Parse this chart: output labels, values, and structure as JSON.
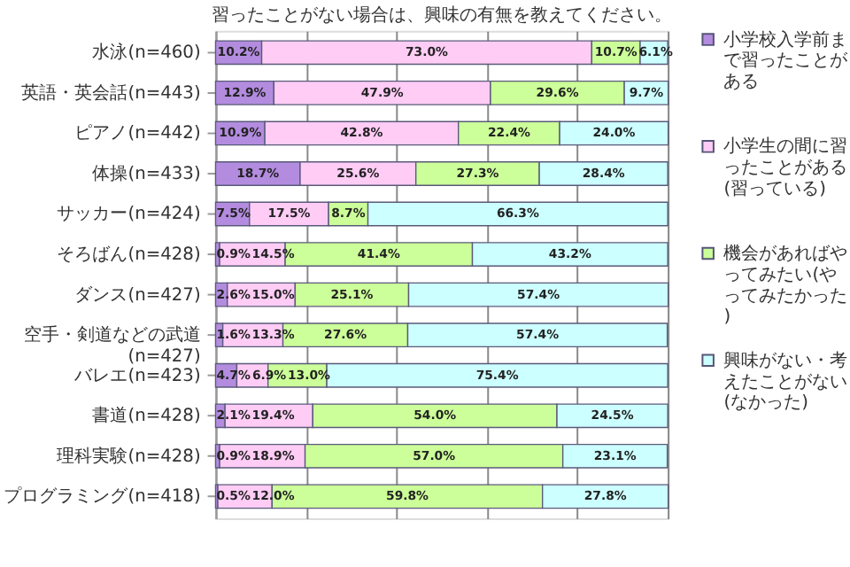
{
  "chart_data": {
    "type": "bar",
    "orientation": "horizontal",
    "stacked": true,
    "title": "習ったことがない場合は、興味の有無を教えてください。",
    "categories": [
      "水泳(n=460)",
      "英語・英会話(n=443)",
      "ピアノ(n=442)",
      "体操(n=433)",
      "サッカー(n=424)",
      "そろばん(n=428)",
      "ダンス(n=427)",
      "空手・剣道などの武道(n=427)",
      "バレエ(n=423)",
      "書道(n=428)",
      "理科実験(n=428)",
      "プログラミング(n=418)"
    ],
    "series": [
      {
        "name": "小学校入学前まで習ったことがある",
        "color": "#b38cdf",
        "values": [
          10.2,
          12.9,
          10.9,
          18.7,
          7.5,
          0.9,
          2.6,
          1.6,
          4.7,
          2.1,
          0.9,
          0.5
        ],
        "value_labels": [
          "10.2%",
          "12.9%",
          "10.9%",
          "18.7%",
          "7.5%",
          "0.9%",
          "2.6%",
          "1.6%",
          "4.7%",
          "2.1%",
          "0.9%",
          "0.5%"
        ]
      },
      {
        "name": "小学生の間に習ったことがある(習っている)",
        "color": "#ffccf5",
        "values": [
          73.0,
          47.9,
          42.8,
          25.6,
          17.5,
          14.5,
          15.0,
          13.3,
          6.9,
          19.4,
          18.9,
          12.0
        ],
        "value_labels": [
          "73.0%",
          "47.9%",
          "42.8%",
          "25.6%",
          "17.5%",
          "14.5%",
          "15.0%",
          "13.3%",
          "6.9%",
          "19.4%",
          "18.9%",
          "12.0%"
        ]
      },
      {
        "name": "機会があればやってみたい(やってみたかった)",
        "color": "#ccff99",
        "values": [
          10.7,
          29.6,
          22.4,
          27.3,
          8.7,
          41.4,
          25.1,
          27.6,
          13.0,
          54.0,
          57.0,
          59.8
        ],
        "value_labels": [
          "10.7%",
          "29.6%",
          "22.4%",
          "27.3%",
          "8.7%",
          "41.4%",
          "25.1%",
          "27.6%",
          "13.0%",
          "54.0%",
          "57.0%",
          "59.8%"
        ]
      },
      {
        "name": "興味がない・考えたことがない(なかった)",
        "color": "#ccffff",
        "values": [
          6.1,
          9.7,
          24.0,
          28.4,
          66.3,
          43.2,
          57.4,
          57.4,
          75.4,
          24.5,
          23.1,
          27.8
        ],
        "value_labels": [
          "6.1%",
          "9.7%",
          "24.0%",
          "28.4%",
          "66.3%",
          "43.2%",
          "57.4%",
          "57.4%",
          "75.4%",
          "24.5%",
          "23.1%",
          "27.8%"
        ]
      }
    ],
    "xlim": [
      0,
      100
    ],
    "tick_labels": "y",
    "grid": "x",
    "legend": "right"
  }
}
